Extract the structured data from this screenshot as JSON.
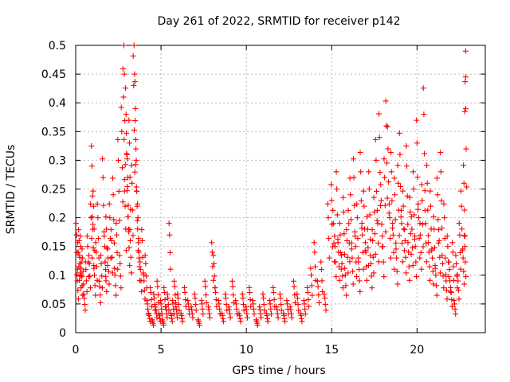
{
  "chart_data": {
    "type": "scatter",
    "title": "Day 261 of 2022, SRMTID for receiver p142",
    "xlabel": "GPS time / hours",
    "ylabel": "SRMTID / TECUs",
    "xlim": [
      0,
      24
    ],
    "ylim": [
      0,
      0.5
    ],
    "xticks": [
      0,
      5,
      10,
      15,
      20
    ],
    "yticks": [
      0,
      0.05,
      0.1,
      0.15,
      0.2,
      0.25,
      0.3,
      0.35,
      0.4,
      0.45,
      0.5
    ],
    "grid": true,
    "marker": "plus",
    "color": "#ff0000",
    "series": [
      {
        "name": "SRMTID",
        "x": [
          0.05,
          0.1,
          0.15,
          0.2,
          0.25,
          0.3,
          0.35,
          0.4,
          0.5,
          0.6,
          0.7,
          0.8,
          0.9,
          0.95,
          1.0,
          1.05,
          1.1,
          1.2,
          1.3,
          1.4,
          1.5,
          1.6,
          1.7,
          1.75,
          1.8,
          1.9,
          2.0,
          2.1,
          2.2,
          2.3,
          2.4,
          2.5,
          2.6,
          2.7,
          2.8,
          2.85,
          2.9,
          2.95,
          3.0,
          3.05,
          3.1,
          3.15,
          3.2,
          3.3,
          3.4,
          3.45,
          3.5,
          3.55,
          3.6,
          3.65,
          3.7,
          3.8,
          3.9,
          4.0,
          4.1,
          4.2,
          4.3,
          4.4,
          4.5,
          4.6,
          4.7,
          4.8,
          4.9,
          5.0,
          5.1,
          5.2,
          5.3,
          5.4,
          5.5,
          5.6,
          5.7,
          5.8,
          5.9,
          6.0,
          6.2,
          6.4,
          6.6,
          6.8,
          7.0,
          7.2,
          7.4,
          7.6,
          7.8,
          8.0,
          8.1,
          8.2,
          8.4,
          8.6,
          8.8,
          9.0,
          9.2,
          9.4,
          9.6,
          9.8,
          10.0,
          10.2,
          10.4,
          10.6,
          10.8,
          11.0,
          11.2,
          11.4,
          11.6,
          11.8,
          12.0,
          12.2,
          12.4,
          12.6,
          12.8,
          13.0,
          13.2,
          13.4,
          13.6,
          13.8,
          14.0,
          14.2,
          14.4,
          14.6,
          14.8,
          15.0,
          15.1,
          15.2,
          15.3,
          15.4,
          15.5,
          15.6,
          15.7,
          15.8,
          15.9,
          16.0,
          16.1,
          16.2,
          16.3,
          16.4,
          16.5,
          16.6,
          16.7,
          16.8,
          16.9,
          17.0,
          17.1,
          17.2,
          17.3,
          17.4,
          17.5,
          17.6,
          17.7,
          17.8,
          17.9,
          18.0,
          18.1,
          18.2,
          18.3,
          18.4,
          18.5,
          18.6,
          18.7,
          18.8,
          18.9,
          19.0,
          19.1,
          19.2,
          19.3,
          19.4,
          19.5,
          19.6,
          19.7,
          19.8,
          19.9,
          20.0,
          20.1,
          20.2,
          20.3,
          20.4,
          20.5,
          20.6,
          20.7,
          20.8,
          20.9,
          21.0,
          21.1,
          21.2,
          21.3,
          21.4,
          21.5,
          21.6,
          21.7,
          21.8,
          21.9,
          22.0,
          22.1,
          22.2,
          22.3,
          22.4,
          22.5,
          22.6,
          22.7,
          22.75,
          22.8,
          22.85
        ],
        "y": [
          0.17,
          0.09,
          0.14,
          0.16,
          0.12,
          0.15,
          0.1,
          0.13,
          0.06,
          0.11,
          0.15,
          0.12,
          0.2,
          0.29,
          0.18,
          0.22,
          0.1,
          0.14,
          0.2,
          0.08,
          0.12,
          0.27,
          0.15,
          0.11,
          0.18,
          0.13,
          0.2,
          0.16,
          0.24,
          0.1,
          0.17,
          0.3,
          0.12,
          0.35,
          0.41,
          0.45,
          0.22,
          0.38,
          0.31,
          0.27,
          0.18,
          0.33,
          0.16,
          0.26,
          0.43,
          0.45,
          0.39,
          0.3,
          0.22,
          0.2,
          0.14,
          0.11,
          0.16,
          0.09,
          0.12,
          0.05,
          0.03,
          0.07,
          0.02,
          0.06,
          0.04,
          0.08,
          0.03,
          0.05,
          0.02,
          0.07,
          0.04,
          0.06,
          0.17,
          0.03,
          0.05,
          0.08,
          0.04,
          0.06,
          0.03,
          0.07,
          0.05,
          0.04,
          0.06,
          0.02,
          0.05,
          0.08,
          0.04,
          0.14,
          0.12,
          0.07,
          0.05,
          0.03,
          0.06,
          0.04,
          0.08,
          0.05,
          0.03,
          0.06,
          0.04,
          0.07,
          0.05,
          0.02,
          0.04,
          0.06,
          0.03,
          0.05,
          0.07,
          0.04,
          0.06,
          0.03,
          0.05,
          0.04,
          0.08,
          0.06,
          0.03,
          0.05,
          0.07,
          0.1,
          0.14,
          0.08,
          0.11,
          0.06,
          0.2,
          0.23,
          0.19,
          0.15,
          0.25,
          0.14,
          0.17,
          0.12,
          0.21,
          0.1,
          0.16,
          0.19,
          0.24,
          0.13,
          0.27,
          0.15,
          0.2,
          0.11,
          0.28,
          0.17,
          0.22,
          0.14,
          0.18,
          0.25,
          0.12,
          0.16,
          0.21,
          0.3,
          0.19,
          0.34,
          0.23,
          0.15,
          0.27,
          0.36,
          0.32,
          0.2,
          0.28,
          0.17,
          0.24,
          0.13,
          0.26,
          0.31,
          0.19,
          0.22,
          0.16,
          0.29,
          0.14,
          0.21,
          0.18,
          0.25,
          0.15,
          0.33,
          0.2,
          0.17,
          0.23,
          0.38,
          0.19,
          0.26,
          0.14,
          0.22,
          0.13,
          0.18,
          0.1,
          0.24,
          0.16,
          0.28,
          0.12,
          0.2,
          0.09,
          0.15,
          0.11,
          0.07,
          0.14,
          0.05,
          0.12,
          0.09,
          0.17,
          0.22,
          0.13,
          0.26,
          0.15,
          0.39
        ],
        "y_high": [
          0.49,
          0.445,
          0.385
        ],
        "x_high": [
          22.85,
          22.85,
          22.8
        ]
      }
    ]
  }
}
